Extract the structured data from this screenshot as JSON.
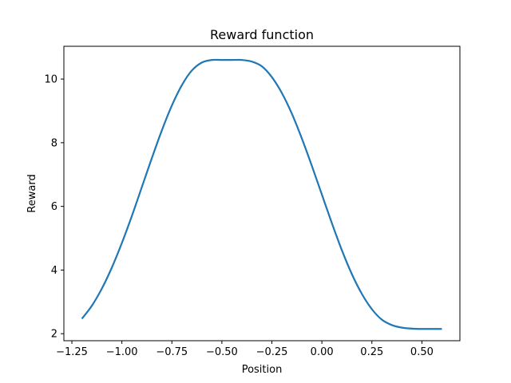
{
  "chart_data": {
    "type": "line",
    "title": "Reward function",
    "xlabel": "Position",
    "ylabel": "Reward",
    "xlim": [
      -1.29,
      0.69
    ],
    "ylim": [
      1.78,
      11.03
    ],
    "xticks": [
      -1.25,
      -1.0,
      -0.75,
      -0.5,
      -0.25,
      0.0,
      0.25,
      0.5
    ],
    "xtick_labels": [
      "−1.25",
      "−1.00",
      "−0.75",
      "−0.50",
      "−0.25",
      "0.00",
      "0.25",
      "0.50"
    ],
    "yticks": [
      2,
      4,
      6,
      8,
      10
    ],
    "ytick_labels": [
      "2",
      "4",
      "6",
      "8",
      "10"
    ],
    "grid": false,
    "legend": "none",
    "series": [
      {
        "color": "#1f77b4",
        "x": [
          -1.2,
          -1.15,
          -1.1,
          -1.05,
          -1.0,
          -0.95,
          -0.9,
          -0.85,
          -0.8,
          -0.75,
          -0.7,
          -0.65,
          -0.6,
          -0.55,
          -0.5,
          -0.45,
          -0.4,
          -0.35,
          -0.3,
          -0.25,
          -0.2,
          -0.15,
          -0.1,
          -0.05,
          0.0,
          0.05,
          0.1,
          0.15,
          0.2,
          0.25,
          0.3,
          0.35,
          0.4,
          0.45,
          0.5,
          0.55,
          0.6
        ],
        "y": [
          2.47,
          2.88,
          3.42,
          4.08,
          4.85,
          5.7,
          6.61,
          7.52,
          8.39,
          9.17,
          9.81,
          10.27,
          10.52,
          10.6,
          10.6,
          10.6,
          10.6,
          10.55,
          10.4,
          10.06,
          9.56,
          8.91,
          8.13,
          7.27,
          6.37,
          5.47,
          4.62,
          3.87,
          3.25,
          2.77,
          2.44,
          2.27,
          2.19,
          2.16,
          2.15,
          2.15,
          2.15
        ]
      }
    ]
  }
}
